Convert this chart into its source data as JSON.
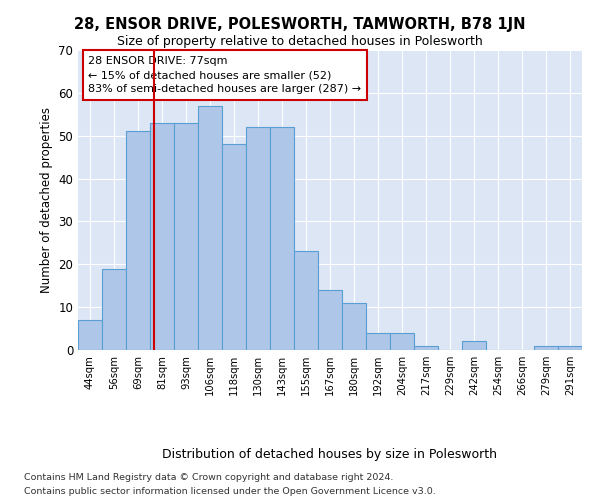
{
  "title": "28, ENSOR DRIVE, POLESWORTH, TAMWORTH, B78 1JN",
  "subtitle": "Size of property relative to detached houses in Polesworth",
  "xlabel": "Distribution of detached houses by size in Polesworth",
  "ylabel": "Number of detached properties",
  "categories": [
    "44sqm",
    "56sqm",
    "69sqm",
    "81sqm",
    "93sqm",
    "106sqm",
    "118sqm",
    "130sqm",
    "143sqm",
    "155sqm",
    "167sqm",
    "180sqm",
    "192sqm",
    "204sqm",
    "217sqm",
    "229sqm",
    "242sqm",
    "254sqm",
    "266sqm",
    "279sqm",
    "291sqm"
  ],
  "values": [
    7,
    19,
    51,
    53,
    53,
    57,
    48,
    52,
    52,
    23,
    14,
    11,
    4,
    4,
    1,
    0,
    2,
    0,
    0,
    1,
    1
  ],
  "bar_color": "#aec6e8",
  "bar_edge_color": "#5a9fd4",
  "bar_edge_width": 0.8,
  "vline_color": "#cc0000",
  "annotation_text": "28 ENSOR DRIVE: 77sqm\n← 15% of detached houses are smaller (52)\n83% of semi-detached houses are larger (287) →",
  "annotation_box_color": "#ffffff",
  "annotation_box_edge_color": "#cc0000",
  "ylim": [
    0,
    70
  ],
  "yticks": [
    0,
    10,
    20,
    30,
    40,
    50,
    60,
    70
  ],
  "background_color": "#dce6f5",
  "footer_line1": "Contains HM Land Registry data © Crown copyright and database right 2024.",
  "footer_line2": "Contains public sector information licensed under the Open Government Licence v3.0."
}
